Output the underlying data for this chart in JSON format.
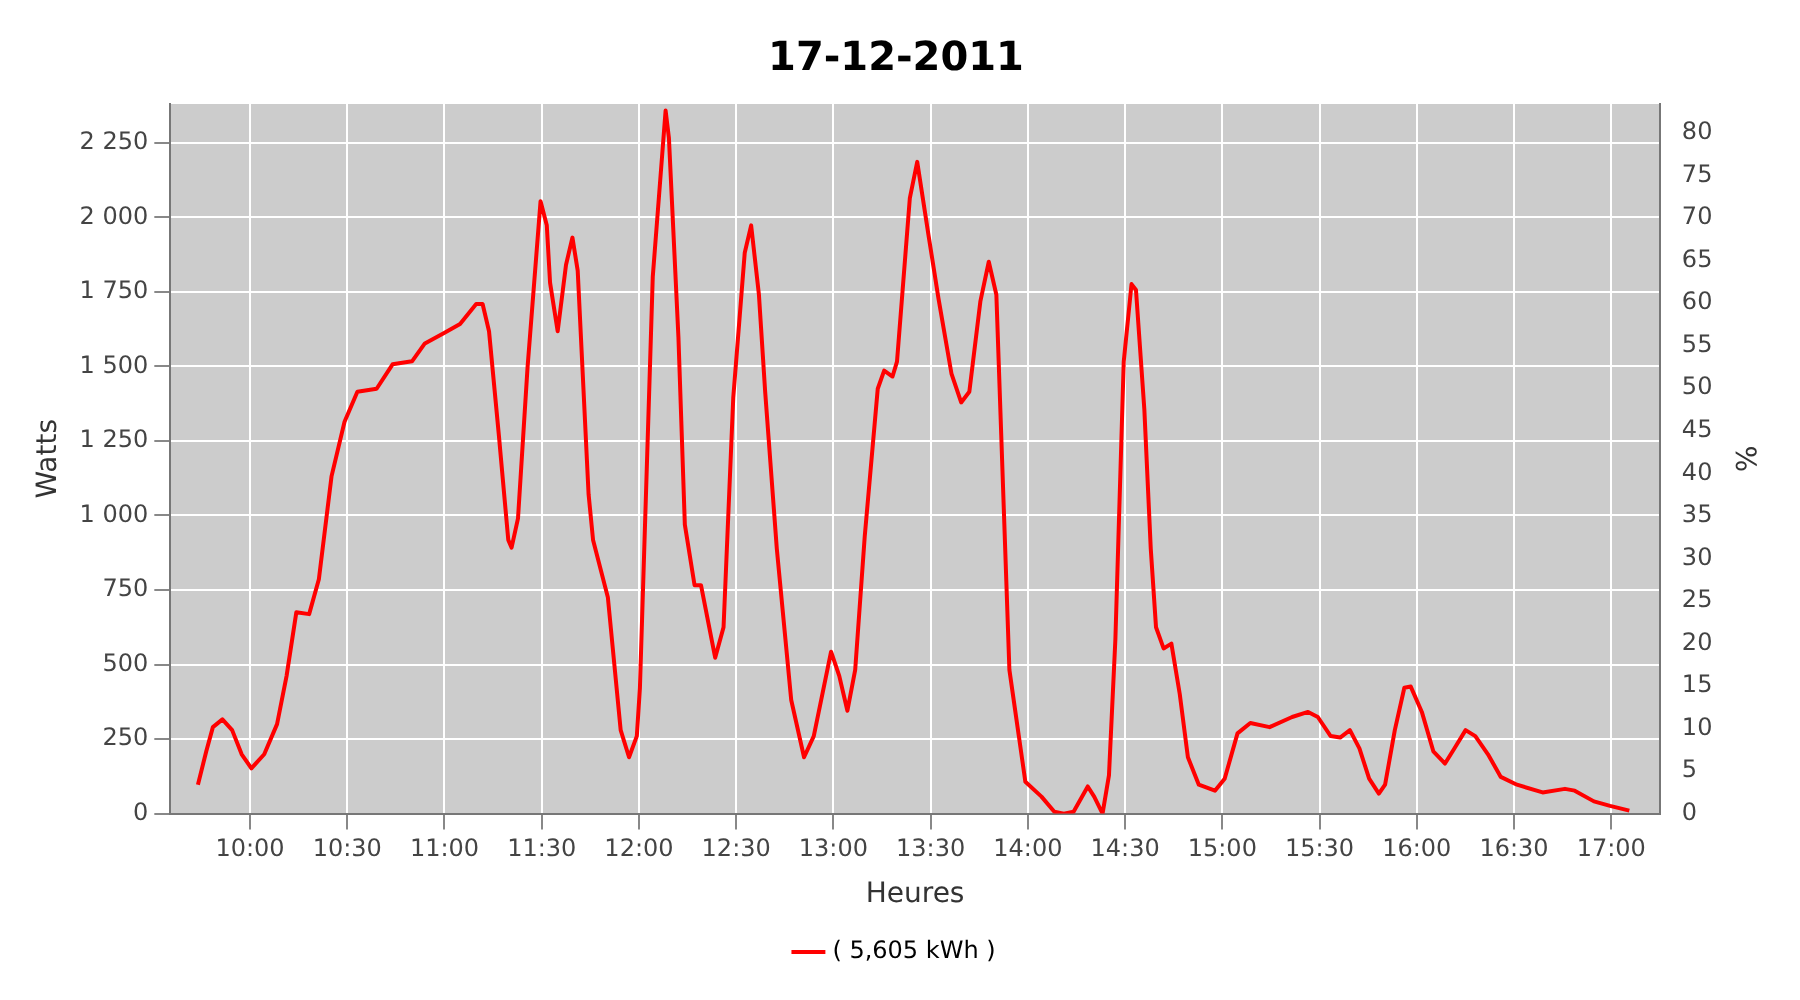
{
  "chart_data": {
    "type": "line",
    "title": "17-12-2011",
    "xlabel": "Heures",
    "ylabel": "Watts",
    "y2label": "%",
    "x": [
      9.732,
      9.775,
      9.809,
      9.858,
      9.908,
      9.957,
      10.007,
      10.073,
      10.139,
      10.188,
      10.238,
      10.304,
      10.354,
      10.419,
      10.486,
      10.552,
      10.651,
      10.733,
      10.833,
      10.899,
      10.998,
      11.08,
      11.163,
      11.196,
      11.229,
      11.279,
      11.328,
      11.345,
      11.378,
      11.427,
      11.494,
      11.526,
      11.543,
      11.582,
      11.625,
      11.658,
      11.685,
      11.741,
      11.764,
      11.84,
      11.906,
      11.949,
      11.989,
      12.005,
      12.071,
      12.137,
      12.154,
      12.203,
      12.236,
      12.286,
      12.319,
      12.392,
      12.435,
      12.485,
      12.544,
      12.577,
      12.617,
      12.649,
      12.709,
      12.783,
      12.849,
      12.899,
      12.988,
      13.03,
      13.072,
      13.112,
      13.161,
      13.228,
      13.261,
      13.304,
      13.327,
      13.393,
      13.431,
      13.491,
      13.54,
      13.607,
      13.657,
      13.699,
      13.756,
      13.799,
      13.838,
      13.905,
      13.987,
      14.07,
      14.136,
      14.185,
      14.235,
      14.308,
      14.341,
      14.384,
      14.417,
      14.45,
      14.493,
      14.533,
      14.556,
      14.599,
      14.632,
      14.659,
      14.698,
      14.738,
      14.781,
      14.823,
      14.879,
      14.962,
      15.012,
      15.078,
      15.144,
      15.243,
      15.359,
      15.441,
      15.491,
      15.557,
      15.606,
      15.656,
      15.705,
      15.755,
      15.805,
      15.837,
      15.887,
      15.936,
      15.969,
      16.026,
      16.085,
      16.145,
      16.194,
      16.251,
      16.301,
      16.366,
      16.432,
      16.515,
      16.647,
      16.762,
      16.812,
      16.911,
      16.994,
      17.093
    ],
    "series": [
      {
        "name": "( 5,605 kWh )",
        "color": "#ff0000",
        "values": [
          97,
          209,
          290,
          316,
          280,
          199,
          152,
          199,
          300,
          462,
          675,
          669,
          786,
          1131,
          1314,
          1415,
          1425,
          1507,
          1517,
          1577,
          1612,
          1642,
          1709,
          1709,
          1618,
          1273,
          918,
          892,
          990,
          1496,
          2054,
          1973,
          1780,
          1618,
          1841,
          1932,
          1821,
          1071,
          918,
          726,
          280,
          189,
          260,
          422,
          1800,
          2358,
          2267,
          1598,
          969,
          766,
          766,
          523,
          625,
          1395,
          1881,
          1973,
          1740,
          1415,
          888,
          381,
          189,
          260,
          543,
          462,
          345,
          482,
          929,
          1425,
          1486,
          1466,
          1516,
          2064,
          2186,
          1932,
          1729,
          1476,
          1379,
          1415,
          1719,
          1851,
          1740,
          482,
          107,
          57,
          6,
          0,
          6,
          91,
          57,
          0,
          128,
          584,
          1516,
          1776,
          1756,
          1355,
          888,
          625,
          554,
          570,
          401,
          189,
          97,
          77,
          117,
          269,
          304,
          290,
          324,
          341,
          324,
          260,
          255,
          280,
          219,
          117,
          67,
          97,
          280,
          422,
          426,
          341,
          209,
          168,
          219,
          280,
          260,
          199,
          123,
          97,
          71,
          83,
          77,
          41,
          26,
          10
        ]
      }
    ],
    "xlim": [
      9.59,
      17.25
    ],
    "xticks": [
      {
        "value": 10,
        "label": "10:00"
      },
      {
        "value": 10.5,
        "label": "10:30"
      },
      {
        "value": 11,
        "label": "11:00"
      },
      {
        "value": 11.5,
        "label": "11:30"
      },
      {
        "value": 12,
        "label": "12:00"
      },
      {
        "value": 12.5,
        "label": "12:30"
      },
      {
        "value": 13,
        "label": "13:00"
      },
      {
        "value": 13.5,
        "label": "13:30"
      },
      {
        "value": 14,
        "label": "14:00"
      },
      {
        "value": 14.5,
        "label": "14:30"
      },
      {
        "value": 15,
        "label": "15:00"
      },
      {
        "value": 15.5,
        "label": "15:30"
      },
      {
        "value": 16,
        "label": "16:00"
      },
      {
        "value": 16.5,
        "label": "16:30"
      },
      {
        "value": 17,
        "label": "17:00"
      }
    ],
    "ylim": [
      0,
      2380
    ],
    "yticks": [
      0,
      250,
      500,
      750,
      {
        "value": 1000,
        "label": "1 000"
      },
      {
        "value": 1250,
        "label": "1 250"
      },
      {
        "value": 1500,
        "label": "1 500"
      },
      {
        "value": 1750,
        "label": "1 750"
      },
      {
        "value": 2000,
        "label": "2 000"
      },
      {
        "value": 2250,
        "label": "2 250"
      }
    ],
    "y2lim": [
      0,
      83.4
    ],
    "y2ticks": [
      0,
      5,
      10,
      15,
      20,
      25,
      30,
      35,
      40,
      45,
      50,
      55,
      60,
      65,
      70,
      75,
      80
    ],
    "grid": true,
    "legend": "bottom",
    "marker": "none",
    "line_style": "solid"
  }
}
